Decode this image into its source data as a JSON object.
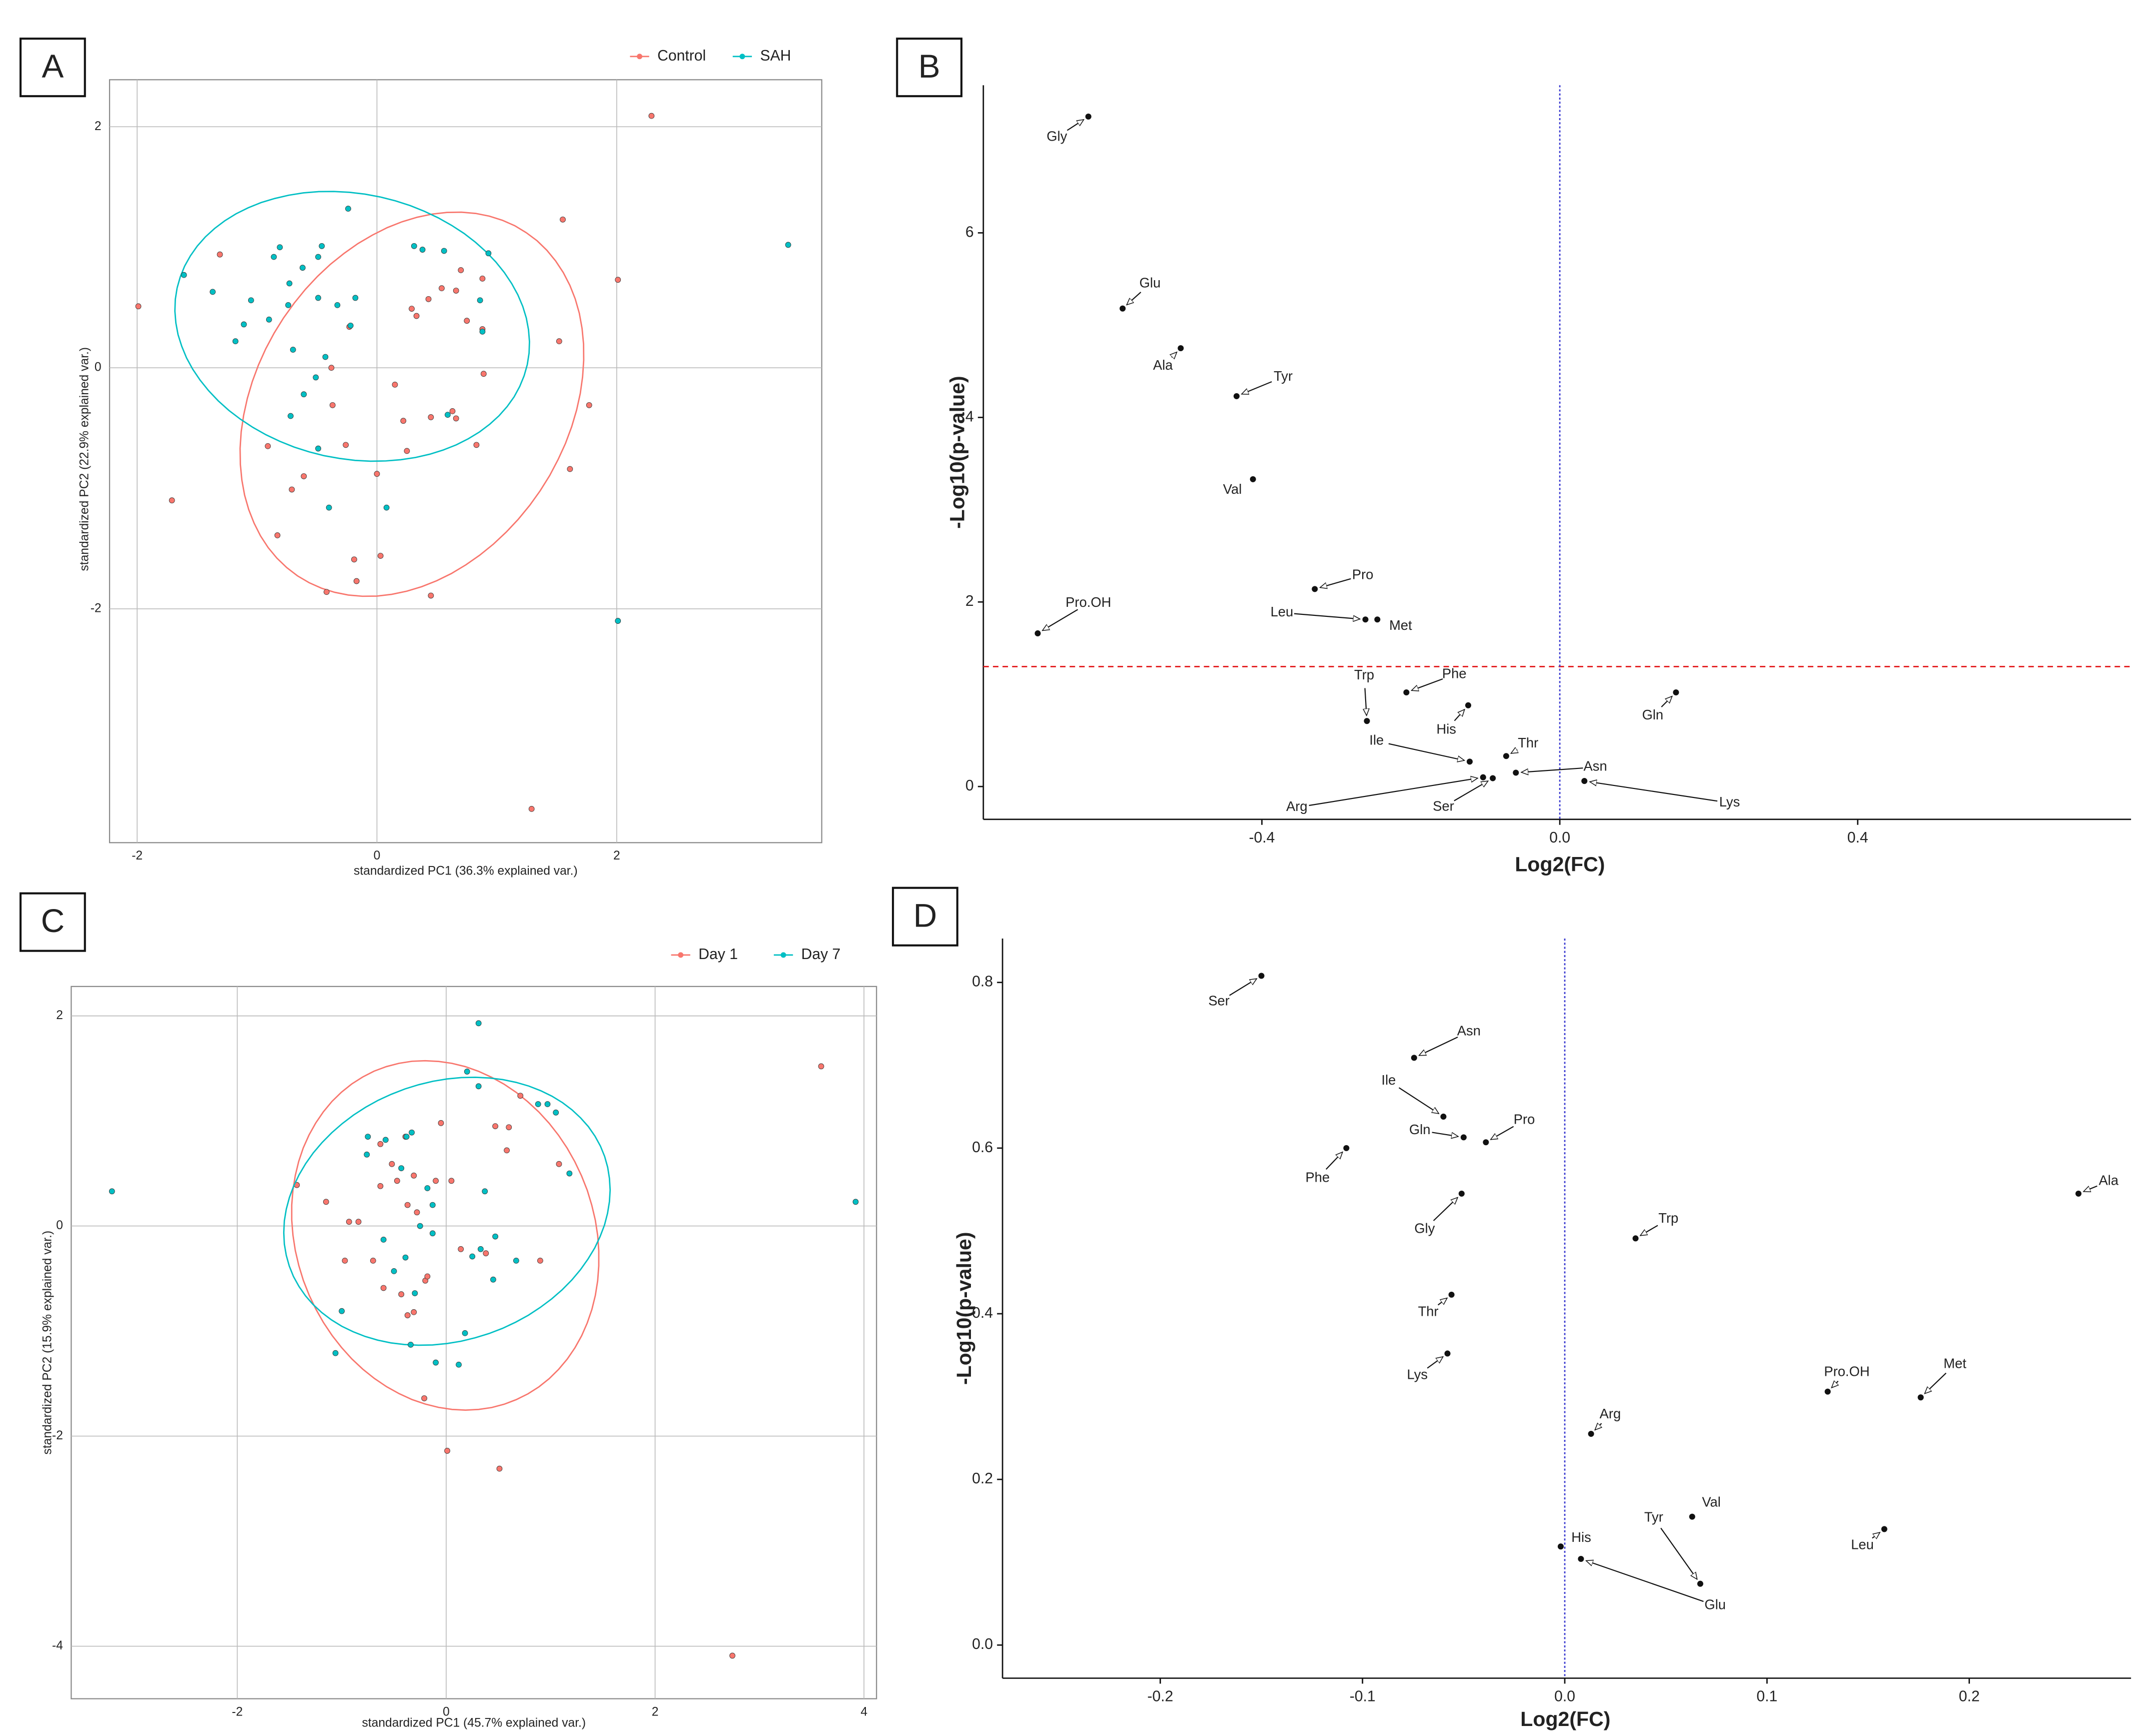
{
  "chart_data": [
    {
      "panel_label": "A",
      "type": "scatter",
      "xlabel": "standardized PC1 (36.3% explained var.)",
      "ylabel": "standardized PC2 (22.9% explained var.)",
      "xlim": [
        -2.23,
        3.71
      ],
      "ylim": [
        -3.94,
        2.39
      ],
      "xticks": [
        -2,
        0,
        2
      ],
      "yticks": [
        -2,
        0,
        2
      ],
      "grid": true,
      "ellipse": true,
      "legend": "top",
      "series": [
        {
          "name": "Control",
          "color": "#f8766d",
          "x": [
            -1.99,
            -1.71,
            -1.31,
            2.29,
            1.55,
            2.01,
            1.52,
            1.77,
            1.61,
            1.29,
            0.45,
            -0.91,
            -0.71,
            -0.83,
            -0.61,
            -0.42,
            -0.19,
            -0.17,
            0.03,
            0,
            -0.26,
            -0.37,
            -0.38,
            0.15,
            0.22,
            0.25,
            0.29,
            0.33,
            0.43,
            0.54,
            0.66,
            0.7,
            0.75,
            0.88,
            0.88,
            0.89,
            0.63,
            0.66,
            0.83,
            0.45,
            -0.23
          ],
          "y": [
            0.51,
            -1.1,
            0.94,
            2.09,
            1.23,
            0.73,
            0.22,
            -0.31,
            -0.84,
            -3.66,
            -1.89,
            -0.65,
            -1.01,
            -1.39,
            -0.9,
            -1.86,
            -1.59,
            -1.77,
            -1.56,
            -0.88,
            -0.64,
            -0.31,
            0,
            -0.14,
            -0.44,
            -0.69,
            0.49,
            0.43,
            0.57,
            0.66,
            0.64,
            0.81,
            0.39,
            0.32,
            0.74,
            -0.05,
            -0.36,
            -0.42,
            -0.64,
            -0.41,
            0.34
          ]
        },
        {
          "name": "SAH",
          "color": "#00bfc4",
          "x": [
            -1.61,
            -1.37,
            -1.05,
            -1.11,
            -1.18,
            -0.86,
            -0.81,
            -0.73,
            -0.74,
            -0.9,
            -0.62,
            -0.49,
            -0.46,
            -0.24,
            -0.7,
            -0.72,
            -0.49,
            -0.33,
            -0.18,
            -0.22,
            -0.43,
            -0.51,
            -0.61,
            -0.49,
            -0.4,
            0.08,
            0.31,
            0.38,
            0.56,
            0.93,
            0.86,
            0.88,
            0.59,
            3.43,
            2.01
          ],
          "y": [
            0.77,
            0.63,
            0.56,
            0.36,
            0.22,
            0.92,
            1.0,
            0.7,
            0.52,
            0.4,
            0.83,
            0.92,
            1.01,
            1.32,
            0.15,
            -0.4,
            0.58,
            0.52,
            0.58,
            0.35,
            0.09,
            -0.08,
            -0.22,
            -0.67,
            -1.16,
            -1.16,
            1.01,
            0.98,
            0.97,
            0.95,
            0.56,
            0.3,
            -0.39,
            1.02,
            -2.1
          ]
        }
      ]
    },
    {
      "panel_label": "B",
      "type": "volcano",
      "xlabel": "Log2(FC)",
      "ylabel": "-Log10(p-value)",
      "xlim": [
        -0.774,
        0.767
      ],
      "ylim": [
        -0.356,
        7.6
      ],
      "xticks": [
        -0.4,
        {
          "value": 0,
          "label": "0.0"
        },
        0.4
      ],
      "yticks": [
        0,
        2,
        4,
        6
      ],
      "hline": {
        "value": 1.3,
        "color": "#e31a1c"
      },
      "vline": {
        "value": 0,
        "color": "#3a3ad0"
      },
      "color": "#111111",
      "labels": [
        "Gly",
        "Glu",
        "Ala",
        "Tyr",
        "Val",
        "Pro",
        "Leu",
        "Met",
        "Pro.OH",
        "Trp",
        "Phe",
        "His",
        "Ile",
        "Thr",
        "Asn",
        "Arg",
        "Ser",
        "Gln",
        "Lys"
      ],
      "x": [
        -0.633,
        -0.587,
        -0.509,
        -0.434,
        -0.412,
        -0.329,
        -0.261,
        -0.245,
        -0.701,
        -0.259,
        -0.206,
        -0.123,
        -0.121,
        -0.072,
        -0.059,
        -0.103,
        -0.09,
        0.156,
        0.033
      ],
      "y": [
        7.26,
        5.18,
        4.75,
        4.23,
        3.33,
        2.14,
        1.81,
        1.81,
        1.66,
        0.71,
        1.02,
        0.88,
        0.27,
        0.33,
        0.15,
        0.1,
        0.09,
        1.02,
        0.06
      ]
    },
    {
      "panel_label": "C",
      "type": "scatter",
      "xlabel": "standardized PC1 (45.7% explained var.)",
      "ylabel": "standardized PC2 (15.9% explained var.)",
      "xlim": [
        -3.59,
        4.12
      ],
      "ylim": [
        -4.5,
        2.28
      ],
      "xticks": [
        -2,
        0,
        2,
        4
      ],
      "yticks": [
        -4,
        -2,
        0,
        2
      ],
      "grid": true,
      "ellipse": true,
      "legend": "top",
      "series": [
        {
          "name": "Day 1",
          "color": "#f8766d",
          "x": [
            3.59,
            2.74,
            0.01,
            0.51,
            -0.21,
            -1.43,
            -1.15,
            -0.97,
            -0.93,
            -0.84,
            -0.7,
            -0.63,
            -0.63,
            -0.52,
            -0.47,
            -0.37,
            -0.39,
            -0.31,
            -0.28,
            -0.6,
            -0.43,
            -0.37,
            -0.31,
            -0.2,
            -0.18,
            -0.05,
            -0.1,
            0.05,
            0.14,
            0.38,
            0.47,
            0.6,
            0.71,
            0.58,
            0.9,
            1.08
          ],
          "y": [
            1.52,
            -4.09,
            -2.14,
            -2.31,
            -1.64,
            0.39,
            0.23,
            -0.33,
            0.04,
            0.04,
            -0.33,
            0.38,
            0.78,
            0.59,
            0.43,
            0.2,
            0.85,
            0.48,
            0.13,
            -0.59,
            -0.65,
            -0.85,
            -0.82,
            -0.52,
            -0.48,
            0.98,
            0.43,
            0.43,
            -0.22,
            -0.26,
            0.95,
            0.94,
            1.24,
            0.72,
            -0.33,
            0.59
          ]
        },
        {
          "name": "Day 7",
          "color": "#00bfc4",
          "x": [
            -3.2,
            3.92,
            0.31,
            0.2,
            0.31,
            -1.06,
            -1.0,
            -0.75,
            -0.76,
            -0.58,
            -0.43,
            -0.33,
            -0.6,
            -0.5,
            -0.39,
            -0.3,
            -0.25,
            -0.18,
            -0.13,
            -0.13,
            0.18,
            -0.1,
            0.12,
            -0.34,
            0.25,
            0.33,
            0.45,
            0.47,
            0.37,
            0.67,
            0.88,
            0.97,
            1.05,
            1.18,
            -0.38
          ],
          "y": [
            0.33,
            0.23,
            1.93,
            1.47,
            1.33,
            -1.21,
            -0.81,
            0.85,
            0.68,
            0.82,
            0.55,
            0.89,
            -0.13,
            -0.43,
            -0.3,
            -0.64,
            0.0,
            0.36,
            0.2,
            -0.07,
            -1.02,
            -1.3,
            -1.32,
            -1.13,
            -0.29,
            -0.22,
            -0.51,
            -0.1,
            0.33,
            -0.33,
            1.16,
            1.16,
            1.08,
            0.5,
            0.85
          ]
        }
      ]
    },
    {
      "panel_label": "D",
      "type": "volcano",
      "xlabel": "Log2(FC)",
      "ylabel": "-Log10(p-value)",
      "xlim": [
        -0.278,
        0.28
      ],
      "ylim": [
        -0.04,
        0.853
      ],
      "xticks": [
        -0.2,
        -0.1,
        {
          "value": 0,
          "label": "0.0"
        },
        0.1,
        0.2
      ],
      "yticks": [
        {
          "value": 0,
          "label": "0.0"
        },
        0.2,
        0.4,
        0.6,
        0.8
      ],
      "vline": {
        "value": 0,
        "color": "#3a3ad0"
      },
      "color": "#111111",
      "labels": [
        "Ser",
        "Asn",
        "Ile",
        "Gln",
        "Pro",
        "Phe",
        "Gly",
        "Ala",
        "Trp",
        "Thr",
        "Lys",
        "Pro.OH",
        "Met",
        "Arg",
        "Val",
        "Leu",
        "His",
        "Tyr",
        "Glu"
      ],
      "x": [
        -0.15,
        -0.0745,
        -0.06,
        -0.05,
        -0.039,
        -0.108,
        -0.051,
        0.254,
        0.035,
        -0.056,
        -0.058,
        0.13,
        0.176,
        0.013,
        0.063,
        0.158,
        -0.002,
        0.067,
        0.008
      ],
      "y": [
        0.808,
        0.709,
        0.638,
        0.613,
        0.607,
        0.6,
        0.545,
        0.545,
        0.491,
        0.423,
        0.352,
        0.306,
        0.299,
        0.255,
        0.155,
        0.14,
        0.119,
        0.074,
        0.104
      ]
    }
  ]
}
